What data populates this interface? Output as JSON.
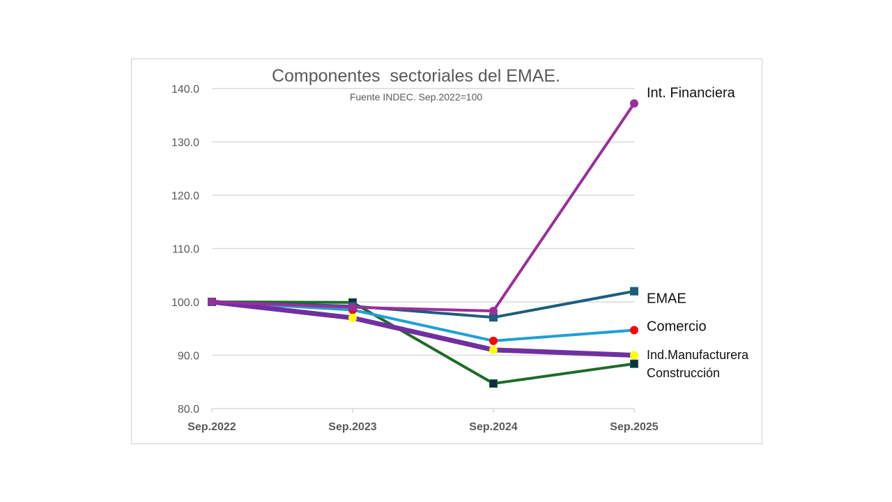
{
  "chart_data": {
    "type": "line",
    "title": "Componentes  sectoriales del EMAE.",
    "subtitle": "Fuente INDEC. Sep.2022=100",
    "xlabel": "",
    "ylabel": "",
    "categories": [
      "Sep.2022",
      "Sep.2023",
      "Sep.2024",
      "Sep.2025"
    ],
    "ylim": [
      80,
      140
    ],
    "yticks": [
      "80.0",
      "90.0",
      "100.0",
      "110.0",
      "120.0",
      "130.0",
      "140.0"
    ],
    "grid": true,
    "legend": "inline-right",
    "series": [
      {
        "name": "Construcción",
        "label": "Construcción",
        "values": [
          100,
          99.9,
          84.7,
          88.4
        ],
        "color": "#1e6b2a",
        "marker": "square",
        "marker_color": "#0f2d4a",
        "weight": "normal"
      },
      {
        "name": "Comercio",
        "label": "Comercio",
        "values": [
          100,
          98.5,
          92.7,
          94.7
        ],
        "color": "#1fa0d4",
        "marker": "circle",
        "marker_color": "#ff0000",
        "weight": "normal"
      },
      {
        "name": "Ind.Manufacturera",
        "label": "Ind.Manufacturera",
        "values": [
          100,
          97.0,
          91.0,
          90.0
        ],
        "color": "#7030a0",
        "marker": "circle",
        "marker_color": "#ffff00",
        "weight": "thick"
      },
      {
        "name": "EMAE",
        "label": "EMAE",
        "values": [
          100,
          99.2,
          97.1,
          102.0
        ],
        "color": "#1b5e7e",
        "marker": "square",
        "marker_color": "#1b5e7e",
        "weight": "normal"
      },
      {
        "name": "Int. Financiera",
        "label": "Int. Financiera",
        "values": [
          100,
          99.0,
          98.3,
          137.2
        ],
        "color": "#9b2e9b",
        "marker": "circle",
        "marker_color": "#9b2e9b",
        "weight": "normal"
      }
    ]
  }
}
